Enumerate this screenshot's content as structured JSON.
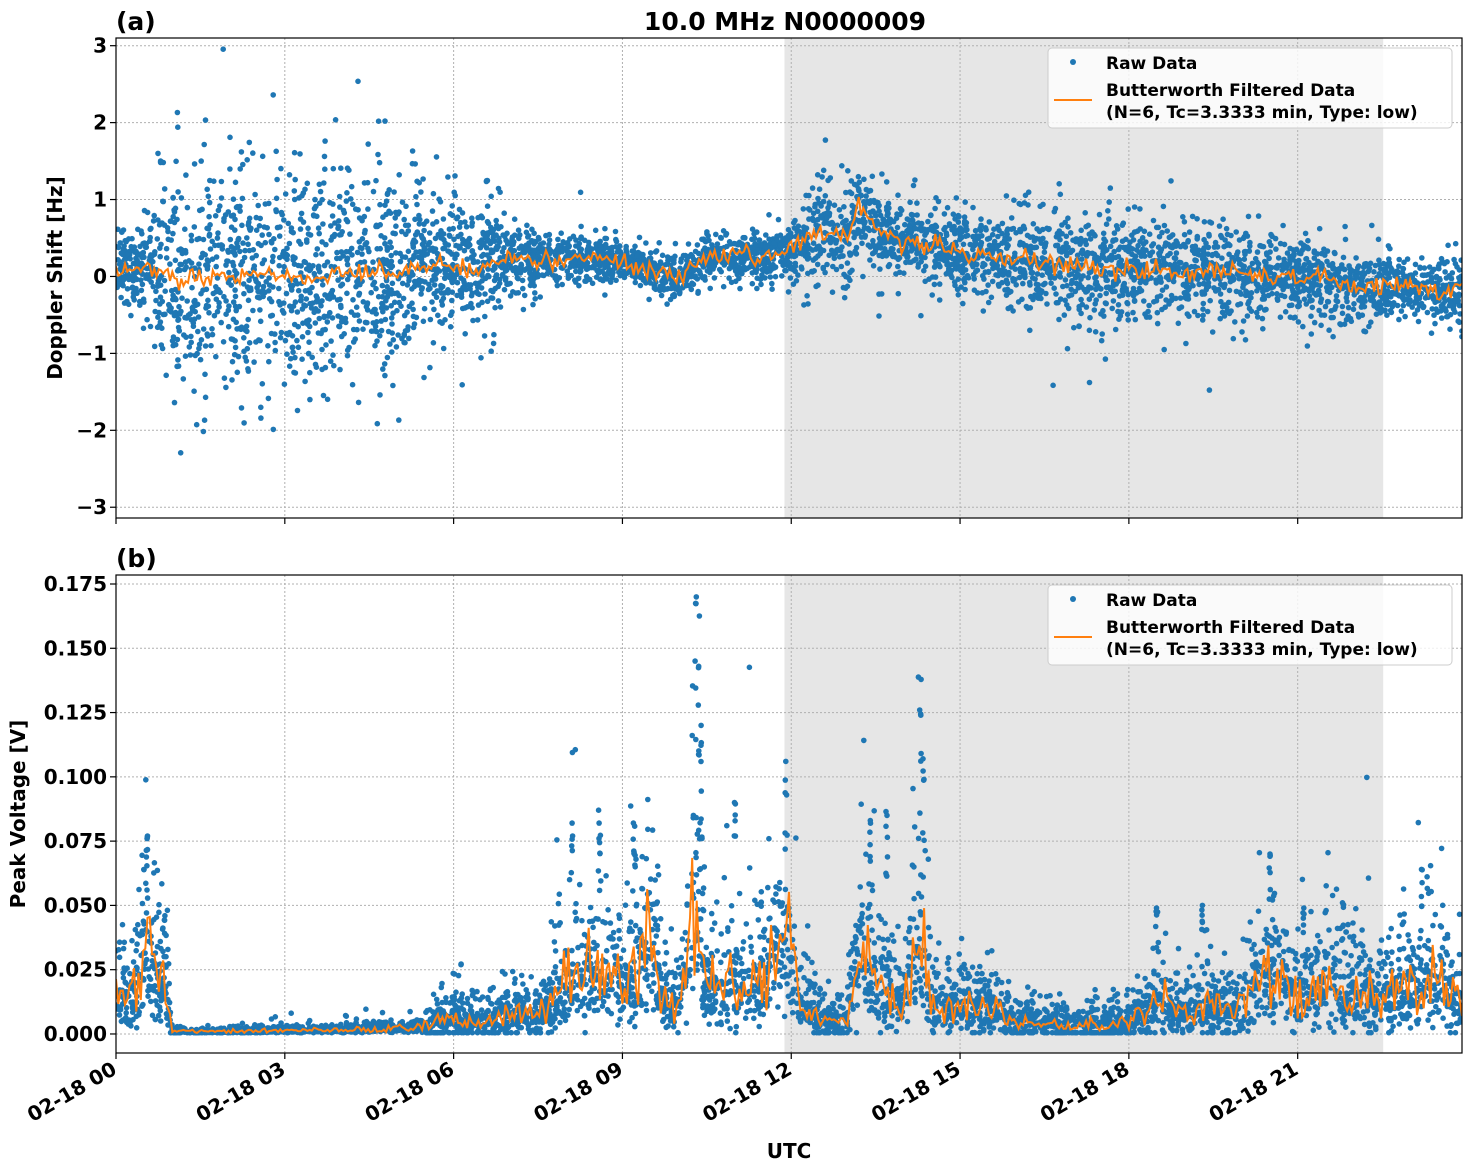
{
  "figure_title": "10.0 MHz N0000009",
  "colors": {
    "raw": "#1f77b4",
    "filtered": "#ff7f0e",
    "shade": "#e6e6e6"
  },
  "chart_data": [
    {
      "type": "scatter",
      "panel_label": "(a)",
      "title": "10.0 MHz N0000009",
      "ylabel": "Doppler Shift [Hz]",
      "xlabel": "",
      "xlim_hours": [
        0,
        23.92
      ],
      "ylim": [
        -3.14,
        3.1
      ],
      "yticks": [
        -3,
        -2,
        -1,
        0,
        1,
        2,
        3
      ],
      "ytick_labels": [
        "−3",
        "−2",
        "−1",
        "0",
        "1",
        "2",
        "3"
      ],
      "xtick_hours": [
        0,
        3,
        6,
        9,
        12,
        15,
        18,
        21
      ],
      "grid": true,
      "shaded_interval_hours": [
        11.88,
        22.52
      ],
      "legend": {
        "placement": "top-right",
        "entries": [
          "Raw Data",
          "Butterworth Filtered Data\n(N=6, Tc=3.3333 min, Type: low)"
        ]
      },
      "series": [
        {
          "name": "Raw Data",
          "kind": "points",
          "spread_hours": [
            0,
            0.5,
            1,
            1.5,
            2,
            3,
            4,
            5,
            5.5,
            6,
            6.5,
            7,
            8,
            9,
            10,
            11,
            12,
            12.5,
            13,
            14,
            15,
            16,
            17,
            18,
            19,
            20,
            21,
            22,
            23,
            23.92
          ],
          "spread_std": [
            0.2,
            0.3,
            0.8,
            0.78,
            0.75,
            0.75,
            0.72,
            0.65,
            0.5,
            0.4,
            0.5,
            0.25,
            0.15,
            0.12,
            0.15,
            0.12,
            0.2,
            0.35,
            0.3,
            0.25,
            0.25,
            0.3,
            0.4,
            0.35,
            0.3,
            0.3,
            0.25,
            0.25,
            0.22,
            0.22
          ]
        },
        {
          "name": "Butterworth Filtered Data (N=6, Tc=3.3333 min, Type: low)",
          "kind": "line",
          "x_hours": [
            0,
            0.5,
            1,
            1.5,
            2,
            2.5,
            3,
            3.5,
            4,
            4.5,
            5,
            5.5,
            6,
            6.5,
            7,
            7.5,
            8,
            8.5,
            9,
            9.5,
            10,
            10.5,
            11,
            11.5,
            12,
            12.5,
            13,
            13.2,
            13.5,
            14,
            14.5,
            15,
            15.5,
            16,
            16.5,
            17,
            17.5,
            18,
            18.5,
            19,
            19.5,
            20,
            20.5,
            21,
            21.5,
            22,
            22.5,
            23,
            23.5,
            23.92
          ],
          "y": [
            0.05,
            0.15,
            0.0,
            -0.05,
            0.0,
            0.05,
            0.0,
            -0.05,
            0.05,
            0.05,
            0.1,
            0.1,
            0.15,
            0.1,
            0.25,
            0.2,
            0.25,
            0.25,
            0.2,
            0.1,
            -0.05,
            0.25,
            0.25,
            0.25,
            0.35,
            0.6,
            0.5,
            0.95,
            0.6,
            0.5,
            0.4,
            0.3,
            0.25,
            0.2,
            0.2,
            0.15,
            0.1,
            0.1,
            0.05,
            0.05,
            0.1,
            0.05,
            0.0,
            0.0,
            -0.05,
            -0.15,
            -0.1,
            -0.15,
            -0.2,
            -0.1
          ]
        }
      ]
    },
    {
      "type": "scatter",
      "panel_label": "(b)",
      "ylabel": "Peak Voltage [V]",
      "xlabel": "UTC",
      "xlim_hours": [
        0,
        23.92
      ],
      "ylim": [
        -0.0074,
        0.1785
      ],
      "yticks": [
        0,
        0.025,
        0.05,
        0.075,
        0.1,
        0.125,
        0.15,
        0.175
      ],
      "ytick_labels": [
        "0.000",
        "0.025",
        "0.050",
        "0.075",
        "0.100",
        "0.125",
        "0.150",
        "0.175"
      ],
      "xtick_hours": [
        0,
        3,
        6,
        9,
        12,
        15,
        18,
        21
      ],
      "xtick_labels": [
        "02-18 00",
        "02-18 03",
        "02-18 06",
        "02-18 09",
        "02-18 12",
        "02-18 15",
        "02-18 18",
        "02-18 21"
      ],
      "grid": true,
      "shaded_interval_hours": [
        11.88,
        22.52
      ],
      "legend": {
        "placement": "top-right",
        "entries": [
          "Raw Data",
          "Butterworth Filtered Data\n(N=6, Tc=3.3333 min, Type: low)"
        ]
      },
      "series": [
        {
          "name": "Raw Data",
          "kind": "points",
          "peaks": [
            [
              0.55,
              0.077
            ],
            [
              0.85,
              0.046
            ],
            [
              8.1,
              0.082
            ],
            [
              8.6,
              0.082
            ],
            [
              9.2,
              0.082
            ],
            [
              10.3,
              0.17
            ],
            [
              10.35,
              0.143
            ],
            [
              10.4,
              0.12
            ],
            [
              11.0,
              0.09
            ],
            [
              11.9,
              0.106
            ],
            [
              13.4,
              0.083
            ],
            [
              13.7,
              0.085
            ],
            [
              14.3,
              0.126
            ],
            [
              14.35,
              0.107
            ],
            [
              18.5,
              0.049
            ],
            [
              19.3,
              0.05
            ],
            [
              20.5,
              0.07
            ],
            [
              21.1,
              0.049
            ],
            [
              21.8,
              0.051
            ],
            [
              23.2,
              0.064
            ]
          ]
        },
        {
          "name": "Butterworth Filtered Data (N=6, Tc=3.3333 min, Type: low)",
          "kind": "line",
          "x_hours": [
            0,
            0.3,
            0.55,
            0.7,
            0.85,
            1,
            1.5,
            2,
            3,
            4,
            5,
            5.5,
            6,
            6.5,
            7,
            7.5,
            8,
            8.5,
            9,
            9.5,
            9.8,
            10,
            10.3,
            10.5,
            11,
            11.5,
            11.9,
            12.2,
            12.5,
            13,
            13.2,
            13.5,
            14,
            14.3,
            14.5,
            15,
            15.5,
            16,
            17,
            18,
            18.5,
            19,
            19.5,
            20,
            20.5,
            21,
            21.5,
            22,
            22.5,
            23,
            23.5,
            23.92
          ],
          "y": [
            0.012,
            0.015,
            0.035,
            0.02,
            0.022,
            0.001,
            0.001,
            0.001,
            0.0015,
            0.0015,
            0.002,
            0.003,
            0.006,
            0.004,
            0.008,
            0.006,
            0.02,
            0.025,
            0.02,
            0.035,
            0.01,
            0.01,
            0.06,
            0.02,
            0.02,
            0.02,
            0.04,
            0.012,
            0.005,
            0.005,
            0.035,
            0.02,
            0.012,
            0.045,
            0.01,
            0.01,
            0.012,
            0.005,
            0.003,
            0.004,
            0.012,
            0.008,
            0.01,
            0.01,
            0.025,
            0.015,
            0.018,
            0.015,
            0.015,
            0.018,
            0.02,
            0.01
          ]
        }
      ]
    }
  ]
}
